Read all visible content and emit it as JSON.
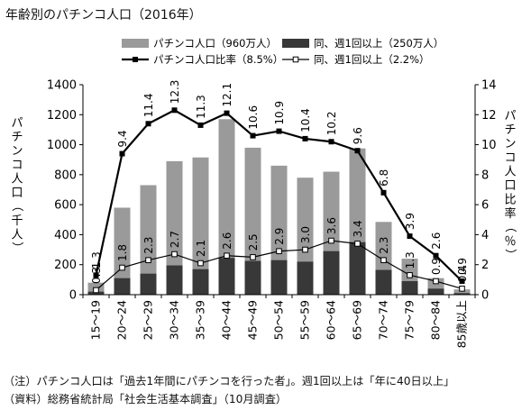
{
  "chart_data": {
    "type": "bar",
    "title": "年齢別のパチンコ人口（2016年）",
    "categories": [
      "15〜19",
      "20〜24",
      "25〜29",
      "30〜34",
      "35〜39",
      "40〜44",
      "45〜49",
      "50〜54",
      "55〜59",
      "60〜64",
      "65〜69",
      "70〜74",
      "75〜79",
      "80〜84",
      "85歳以上"
    ],
    "series": [
      {
        "name": "パチンコ人口（960万人）",
        "kind": "bar",
        "axis": "left",
        "color": "#9a9a9a",
        "values": [
          80,
          580,
          730,
          890,
          915,
          1170,
          980,
          860,
          780,
          820,
          975,
          485,
          240,
          110,
          35
        ]
      },
      {
        "name": "同、週1回以上（250万人）",
        "kind": "bar",
        "axis": "left",
        "color": "#383838",
        "values": [
          20,
          110,
          140,
          195,
          170,
          245,
          225,
          230,
          220,
          290,
          350,
          165,
          90,
          40,
          10
        ]
      },
      {
        "name": "パチンコ人口比率（8.5%）",
        "kind": "line",
        "axis": "right",
        "marker": "filled",
        "color": "#000000",
        "values": [
          1.3,
          9.4,
          11.4,
          12.3,
          11.3,
          12.1,
          10.6,
          10.9,
          10.4,
          10.2,
          9.6,
          6.8,
          3.9,
          2.6,
          0.9
        ]
      },
      {
        "name": "同、週1回以上（2.2%）",
        "kind": "line",
        "axis": "right",
        "marker": "open",
        "color": "#000000",
        "values": [
          0.3,
          1.8,
          2.3,
          2.7,
          2.1,
          2.6,
          2.5,
          2.9,
          3.0,
          3.6,
          3.4,
          2.3,
          1.3,
          0.9,
          0.4
        ]
      }
    ],
    "labels": {
      "line_main": [
        "1.3",
        "9.4",
        "11.4",
        "12.3",
        "11.3",
        "12.1",
        "10.6",
        "10.9",
        "10.4",
        "10.2",
        "9.6",
        "6.8",
        "3.9",
        "2.6",
        "0.9"
      ],
      "line_weekly": [
        "0.3",
        "1.8",
        "2.3",
        "2.7",
        "2.1",
        "2.6",
        "2.5",
        "2.9",
        "3.0",
        "3.6",
        "3.4",
        "2.3",
        "1.3",
        "0.9",
        "0.4"
      ]
    },
    "left_axis": {
      "title": "パチンコ人口（千人）",
      "min": 0,
      "max": 1400,
      "ticks": [
        0,
        200,
        400,
        600,
        800,
        1000,
        1200,
        1400
      ]
    },
    "right_axis": {
      "title": "パチンコ人口比率（％）",
      "min": 0,
      "max": 14,
      "ticks": [
        0,
        2,
        4,
        6,
        8,
        10,
        12,
        14
      ]
    },
    "grid": false,
    "legend": "top"
  },
  "notes": {
    "note": "（注）パチンコ人口は「過去1年間にパチンコを行った者」。週1回以上は「年に40日以上」",
    "source": "（資料）総務省統計局「社会生活基本調査」（10月調査）"
  }
}
